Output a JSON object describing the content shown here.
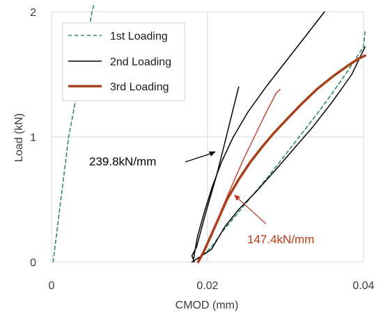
{
  "chart_data": {
    "type": "line",
    "title": "",
    "xlabel": "CMOD (mm)",
    "ylabel": "Load (kN)",
    "xlim": [
      0,
      0.04
    ],
    "ylim": [
      0,
      2
    ],
    "xticks": [
      {
        "value": 0,
        "label": "0"
      },
      {
        "value": 0.02,
        "label": "0.02"
      },
      {
        "value": 0.04,
        "label": "0.04"
      }
    ],
    "yticks": [
      {
        "value": 0,
        "label": "0"
      },
      {
        "value": 1,
        "label": "1"
      },
      {
        "value": 2,
        "label": "2"
      }
    ],
    "grid": true,
    "legend_position": "top-left",
    "series": [
      {
        "name": "1st Loading",
        "color": "#2e8b57",
        "style": "dashed",
        "points": [
          [
            0.0002,
            0
          ],
          [
            0.0004,
            0.1
          ],
          [
            0.0006,
            0.2
          ],
          [
            0.0008,
            0.3
          ],
          [
            0.001,
            0.4
          ],
          [
            0.0012,
            0.5
          ],
          [
            0.0014,
            0.6
          ],
          [
            0.0016,
            0.7
          ],
          [
            0.0018,
            0.8
          ],
          [
            0.002,
            0.9
          ],
          [
            0.0022,
            1.0
          ],
          [
            0.0025,
            1.1
          ],
          [
            0.0028,
            1.2
          ],
          [
            0.0031,
            1.3
          ],
          [
            0.0034,
            1.4
          ],
          [
            0.0037,
            1.5
          ],
          [
            0.004,
            1.6
          ],
          [
            0.0043,
            1.7
          ],
          [
            0.0046,
            1.8
          ],
          [
            0.0049,
            1.9
          ],
          [
            0.0052,
            2.0
          ],
          [
            0.0054,
            2.05
          ]
        ]
      },
      {
        "name": "1st Loading",
        "color": "#2e8b57",
        "style": "dashed",
        "points": [
          [
            0.0188,
            0.02
          ],
          [
            0.0205,
            0.12
          ],
          [
            0.022,
            0.25
          ],
          [
            0.024,
            0.4
          ],
          [
            0.026,
            0.55
          ],
          [
            0.028,
            0.7
          ],
          [
            0.03,
            0.86
          ],
          [
            0.032,
            1.02
          ],
          [
            0.034,
            1.18
          ],
          [
            0.036,
            1.35
          ],
          [
            0.038,
            1.53
          ],
          [
            0.04,
            1.72
          ],
          [
            0.0402,
            1.84
          ]
        ]
      },
      {
        "name": "2nd Loading",
        "color": "#000000",
        "style": "solid",
        "points": [
          [
            0.0183,
            0.0
          ],
          [
            0.018,
            0.05
          ],
          [
            0.0186,
            0.12
          ],
          [
            0.0192,
            0.26
          ],
          [
            0.0198,
            0.4
          ],
          [
            0.0205,
            0.55
          ],
          [
            0.0212,
            0.7
          ],
          [
            0.0218,
            0.85
          ],
          [
            0.0224,
            1.0
          ],
          [
            0.023,
            1.15
          ],
          [
            0.0236,
            1.3
          ],
          [
            0.024,
            1.4
          ]
        ]
      },
      {
        "name": "2nd Loading",
        "color": "#000000",
        "style": "solid",
        "points": [
          [
            0.0182,
            0.02
          ],
          [
            0.0187,
            0.2
          ],
          [
            0.0196,
            0.4
          ],
          [
            0.0206,
            0.6
          ],
          [
            0.0218,
            0.8
          ],
          [
            0.0233,
            1.0
          ],
          [
            0.0252,
            1.2
          ],
          [
            0.0275,
            1.4
          ],
          [
            0.03,
            1.6
          ],
          [
            0.0325,
            1.8
          ],
          [
            0.035,
            2.0
          ]
        ]
      },
      {
        "name": "2nd Loading",
        "color": "#000000",
        "style": "solid",
        "points": [
          [
            0.018,
            0.0
          ],
          [
            0.0205,
            0.1
          ],
          [
            0.0222,
            0.28
          ],
          [
            0.024,
            0.42
          ],
          [
            0.0262,
            0.56
          ],
          [
            0.0285,
            0.72
          ],
          [
            0.031,
            0.9
          ],
          [
            0.0335,
            1.08
          ],
          [
            0.036,
            1.28
          ],
          [
            0.0385,
            1.5
          ],
          [
            0.0402,
            1.72
          ]
        ]
      },
      {
        "name": "3rd Loading",
        "color": "#a5401b",
        "style": "solid-thick",
        "points": [
          [
            0.0188,
            0.0
          ],
          [
            0.0195,
            0.08
          ],
          [
            0.0205,
            0.22
          ],
          [
            0.0215,
            0.36
          ],
          [
            0.0225,
            0.5
          ],
          [
            0.024,
            0.66
          ],
          [
            0.0255,
            0.8
          ],
          [
            0.027,
            0.92
          ],
          [
            0.0285,
            1.03
          ],
          [
            0.03,
            1.13
          ],
          [
            0.032,
            1.26
          ],
          [
            0.034,
            1.38
          ],
          [
            0.036,
            1.48
          ],
          [
            0.038,
            1.57
          ],
          [
            0.0395,
            1.63
          ],
          [
            0.0402,
            1.65
          ]
        ]
      },
      {
        "name": "",
        "color": "#c0392b",
        "style": "thin-red",
        "points": [
          [
            0.0205,
            0.2
          ],
          [
            0.0218,
            0.42
          ],
          [
            0.0232,
            0.62
          ],
          [
            0.0246,
            0.82
          ],
          [
            0.026,
            1.0
          ],
          [
            0.0274,
            1.18
          ],
          [
            0.0288,
            1.35
          ],
          [
            0.0293,
            1.38
          ]
        ]
      }
    ],
    "annotations": [
      {
        "text": "239.8kN/mm",
        "color": "#000000",
        "arrow_to": [
          0.0225,
          0.92
        ]
      },
      {
        "text": "147.4kN/mm",
        "color": "#b83a12",
        "arrow_to": [
          0.0235,
          0.5
        ]
      }
    ]
  }
}
